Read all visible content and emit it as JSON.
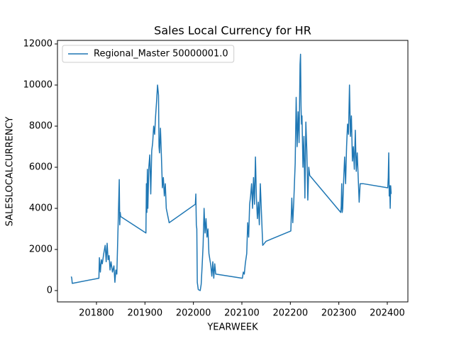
{
  "chart_data": {
    "type": "line",
    "title": "Sales Local Currency for HR",
    "x_label": "YEARWEEK",
    "y_label": "SALESLOCALCURRENCY",
    "x": [
      201748,
      201749,
      201750,
      201805,
      201806,
      201808,
      201810,
      201812,
      201815,
      201818,
      201820,
      201822,
      201824,
      201826,
      201828,
      201830,
      201833,
      201836,
      201838,
      201840,
      201842,
      201845,
      201847,
      201848,
      201849,
      201850,
      201902,
      201903,
      201904,
      201905,
      201906,
      201908,
      201910,
      201912,
      201914,
      201916,
      201918,
      201920,
      201922,
      201924,
      201926,
      201928,
      201929,
      201930,
      201932,
      201934,
      201936,
      201938,
      201940,
      201942,
      201944,
      201950,
      202004,
      202005,
      202006,
      202007,
      202008,
      202010,
      202014,
      202016,
      202018,
      202020,
      202022,
      202024,
      202026,
      202028,
      202030,
      202032,
      202034,
      202036,
      202038,
      202040,
      202042,
      202044,
      202046,
      202101,
      202103,
      202105,
      202107,
      202110,
      202112,
      202114,
      202116,
      202118,
      202120,
      202122,
      202124,
      202126,
      202128,
      202130,
      202132,
      202134,
      202136,
      202138,
      202140,
      202143,
      202150,
      202201,
      202203,
      202205,
      202207,
      202210,
      202212,
      202214,
      202216,
      202218,
      202220,
      202221,
      202222,
      202223,
      202224,
      202226,
      202228,
      202230,
      202232,
      202234,
      202236,
      202238,
      202240,
      202304,
      202305,
      202306,
      202307,
      202308,
      202310,
      202312,
      202314,
      202316,
      202318,
      202320,
      202322,
      202324,
      202326,
      202328,
      202330,
      202332,
      202334,
      202336,
      202338,
      202340,
      202342,
      202344,
      202350,
      202401,
      202402,
      202403,
      202404,
      202405,
      202406,
      202407,
      202408
    ],
    "series": [
      {
        "name": "Regional_Master 50000001.0",
        "color": "#1f77b4",
        "values": [
          680,
          600,
          350,
          600,
          1600,
          900,
          1500,
          1300,
          1800,
          2200,
          1400,
          2300,
          1500,
          1700,
          1000,
          1400,
          900,
          1200,
          400,
          1000,
          800,
          3500,
          5400,
          3200,
          3800,
          3600,
          2800,
          5200,
          3800,
          5900,
          4000,
          6000,
          6600,
          4700,
          6800,
          7200,
          8000,
          7600,
          8500,
          9200,
          10000,
          9500,
          7000,
          6700,
          7900,
          6500,
          5000,
          5500,
          4600,
          5200,
          4000,
          3300,
          4200,
          4700,
          3200,
          3000,
          400,
          50,
          0,
          300,
          1200,
          2200,
          4000,
          2800,
          3500,
          2600,
          3000,
          1800,
          1500,
          1200,
          700,
          1400,
          600,
          1300,
          800,
          600,
          900,
          800,
          1300,
          1800,
          3300,
          2600,
          4200,
          4600,
          5200,
          4000,
          5500,
          4200,
          6500,
          4500,
          3500,
          4300,
          3200,
          5200,
          4000,
          2200,
          2400,
          2900,
          4500,
          3300,
          4300,
          6200,
          9400,
          7000,
          8700,
          7200,
          11000,
          11500,
          9000,
          8100,
          8500,
          6000,
          7500,
          4500,
          8200,
          6800,
          4400,
          6000,
          5600,
          3800,
          4100,
          5200,
          3800,
          4000,
          5400,
          6500,
          5200,
          7000,
          8100,
          7600,
          10000,
          7500,
          8500,
          6300,
          7000,
          5900,
          7800,
          5800,
          6700,
          5500,
          4300,
          5200,
          5200,
          5000,
          5500,
          6700,
          4600,
          5100,
          4000,
          5100,
          4700
        ]
      }
    ],
    "xlim": [
      201719.5,
      202442.5
    ],
    "ylim": [
      -552,
      12172
    ],
    "xticks": [
      201800,
      201900,
      202000,
      202100,
      202200,
      202300,
      202400
    ],
    "yticks": [
      0,
      2000,
      4000,
      6000,
      8000,
      10000,
      12000
    ],
    "legend": "upper left"
  }
}
